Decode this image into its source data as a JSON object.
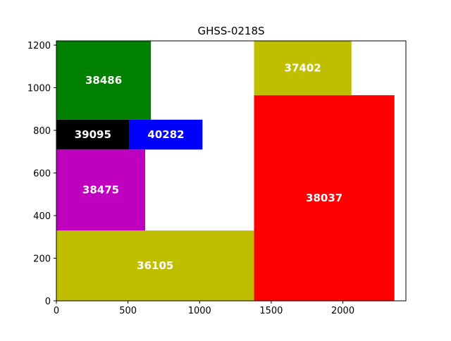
{
  "chart_data": {
    "type": "rectangle-packing",
    "title": "GHSS-0218S",
    "xlabel": "",
    "ylabel": "",
    "xlim": [
      0,
      2440
    ],
    "ylim": [
      0,
      1220
    ],
    "xticks": [
      0,
      500,
      1000,
      1500,
      2000
    ],
    "yticks": [
      0,
      200,
      400,
      600,
      800,
      1000,
      1200
    ],
    "grid": false,
    "rects": [
      {
        "label": "36105",
        "x": 0,
        "y": 0,
        "w": 1380,
        "h": 330,
        "color": "#bfbf00"
      },
      {
        "label": "38475",
        "x": 0,
        "y": 330,
        "w": 620,
        "h": 380,
        "color": "#bf00bf"
      },
      {
        "label": "39095",
        "x": 0,
        "y": 710,
        "w": 510,
        "h": 140,
        "color": "#000000"
      },
      {
        "label": "40282",
        "x": 510,
        "y": 710,
        "w": 510,
        "h": 140,
        "color": "#0000ff"
      },
      {
        "label": "38486",
        "x": 0,
        "y": 850,
        "w": 660,
        "h": 370,
        "color": "#008000"
      },
      {
        "label": "38037",
        "x": 1380,
        "y": 0,
        "w": 980,
        "h": 965,
        "color": "#ff0000"
      },
      {
        "label": "37402",
        "x": 1380,
        "y": 965,
        "w": 680,
        "h": 255,
        "color": "#bfbf00"
      }
    ]
  }
}
